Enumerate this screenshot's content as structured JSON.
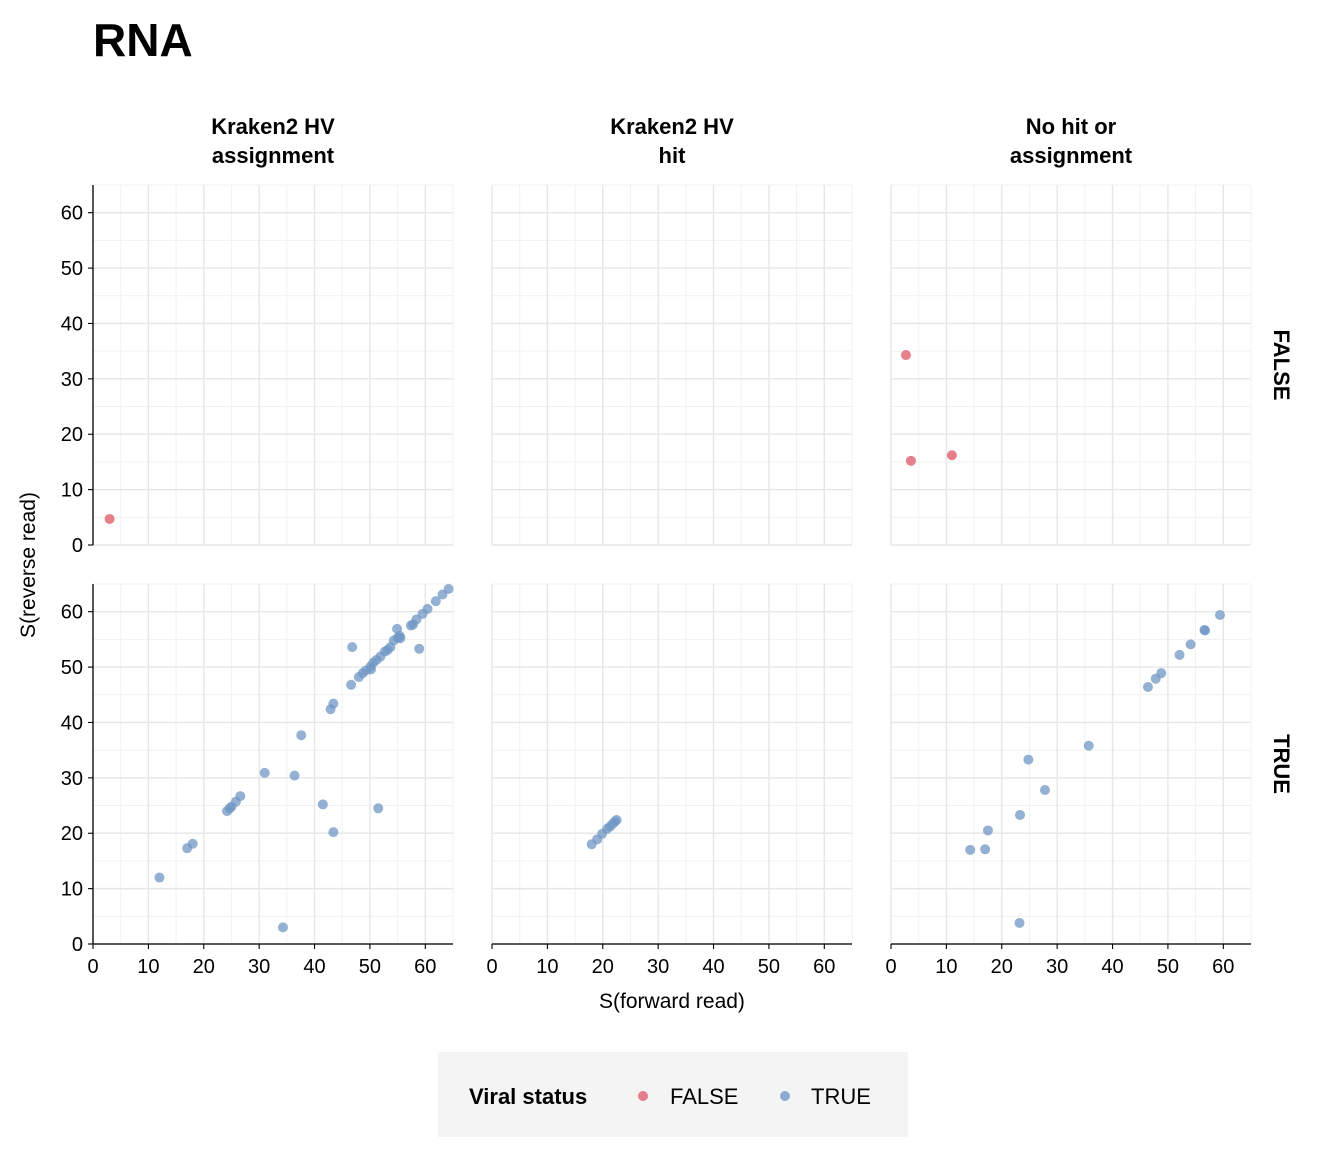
{
  "chart_data": {
    "type": "scatter",
    "title": "RNA",
    "xlabel": "S(forward read)",
    "ylabel": "S(reverse read)",
    "xlim": [
      0,
      65
    ],
    "ylim": [
      0,
      65
    ],
    "x_ticks": [
      0,
      10,
      20,
      30,
      40,
      50,
      60
    ],
    "y_ticks": [
      0,
      10,
      20,
      30,
      40,
      50,
      60
    ],
    "grid": true,
    "column_facets": [
      "Kraken2 HV\nassignment",
      "Kraken2 HV\nhit",
      "No hit or\nassignment"
    ],
    "row_facets": [
      "FALSE",
      "TRUE"
    ],
    "legend": {
      "title": "Viral status",
      "position": "bottom",
      "entries": [
        {
          "label": "FALSE",
          "color": "#e06a77"
        },
        {
          "label": "TRUE",
          "color": "#7097c4"
        }
      ]
    },
    "panels": [
      {
        "column": 0,
        "row": 0,
        "series": "FALSE",
        "points": [
          [
            3,
            4.7
          ]
        ]
      },
      {
        "column": 1,
        "row": 0,
        "series": "FALSE",
        "points": []
      },
      {
        "column": 2,
        "row": 0,
        "series": "FALSE",
        "points": [
          [
            2.7,
            34.3
          ],
          [
            3.6,
            15.2
          ],
          [
            11,
            16.2
          ]
        ]
      },
      {
        "column": 0,
        "row": 1,
        "series": "TRUE",
        "points": [
          [
            12,
            12
          ],
          [
            17,
            17.3
          ],
          [
            18,
            18.1
          ],
          [
            24.2,
            24
          ],
          [
            24.7,
            24.5
          ],
          [
            25,
            24.8
          ],
          [
            25.8,
            25.7
          ],
          [
            26.6,
            26.7
          ],
          [
            31,
            30.9
          ],
          [
            34.3,
            3
          ],
          [
            36.4,
            30.4
          ],
          [
            37.6,
            37.7
          ],
          [
            41.5,
            25.2
          ],
          [
            42.9,
            42.4
          ],
          [
            43.4,
            43.4
          ],
          [
            43.4,
            20.2
          ],
          [
            46.6,
            46.8
          ],
          [
            46.8,
            53.6
          ],
          [
            48,
            48.2
          ],
          [
            48.7,
            48.9
          ],
          [
            49.3,
            49.4
          ],
          [
            50.1,
            50.1
          ],
          [
            50.2,
            49.6
          ],
          [
            50.6,
            50.8
          ],
          [
            51.2,
            51.3
          ],
          [
            51.5,
            24.5
          ],
          [
            51.9,
            51.9
          ],
          [
            52.7,
            52.8
          ],
          [
            53.2,
            53.1
          ],
          [
            53.7,
            53.6
          ],
          [
            54.3,
            54.8
          ],
          [
            54.9,
            56.9
          ],
          [
            55,
            55.3
          ],
          [
            55.4,
            55.6
          ],
          [
            55.5,
            55.2
          ],
          [
            57.4,
            57.5
          ],
          [
            57.8,
            57.7
          ],
          [
            58.4,
            58.6
          ],
          [
            58.9,
            53.3
          ],
          [
            59.5,
            59.6
          ],
          [
            60.4,
            60.5
          ],
          [
            61.9,
            61.9
          ],
          [
            63.1,
            63.1
          ],
          [
            64.2,
            64.1
          ]
        ]
      },
      {
        "column": 1,
        "row": 1,
        "series": "TRUE",
        "points": [
          [
            18,
            18
          ],
          [
            19,
            18.9
          ],
          [
            19.9,
            19.9
          ],
          [
            20.8,
            20.8
          ],
          [
            21.3,
            21.2
          ],
          [
            21.8,
            21.7
          ],
          [
            22.2,
            22.1
          ],
          [
            22.5,
            22.4
          ]
        ]
      },
      {
        "column": 2,
        "row": 1,
        "series": "TRUE",
        "points": [
          [
            14.3,
            17
          ],
          [
            17,
            17.1
          ],
          [
            17.5,
            20.5
          ],
          [
            23.2,
            3.8
          ],
          [
            23.3,
            23.3
          ],
          [
            24.8,
            33.3
          ],
          [
            27.8,
            27.8
          ],
          [
            35.7,
            35.8
          ],
          [
            46.4,
            46.4
          ],
          [
            47.8,
            47.9
          ],
          [
            48.8,
            48.9
          ],
          [
            52.1,
            52.2
          ],
          [
            54.1,
            54.1
          ],
          [
            56.6,
            56.7
          ],
          [
            56.7,
            56.6
          ],
          [
            59.4,
            59.4
          ]
        ]
      }
    ]
  }
}
